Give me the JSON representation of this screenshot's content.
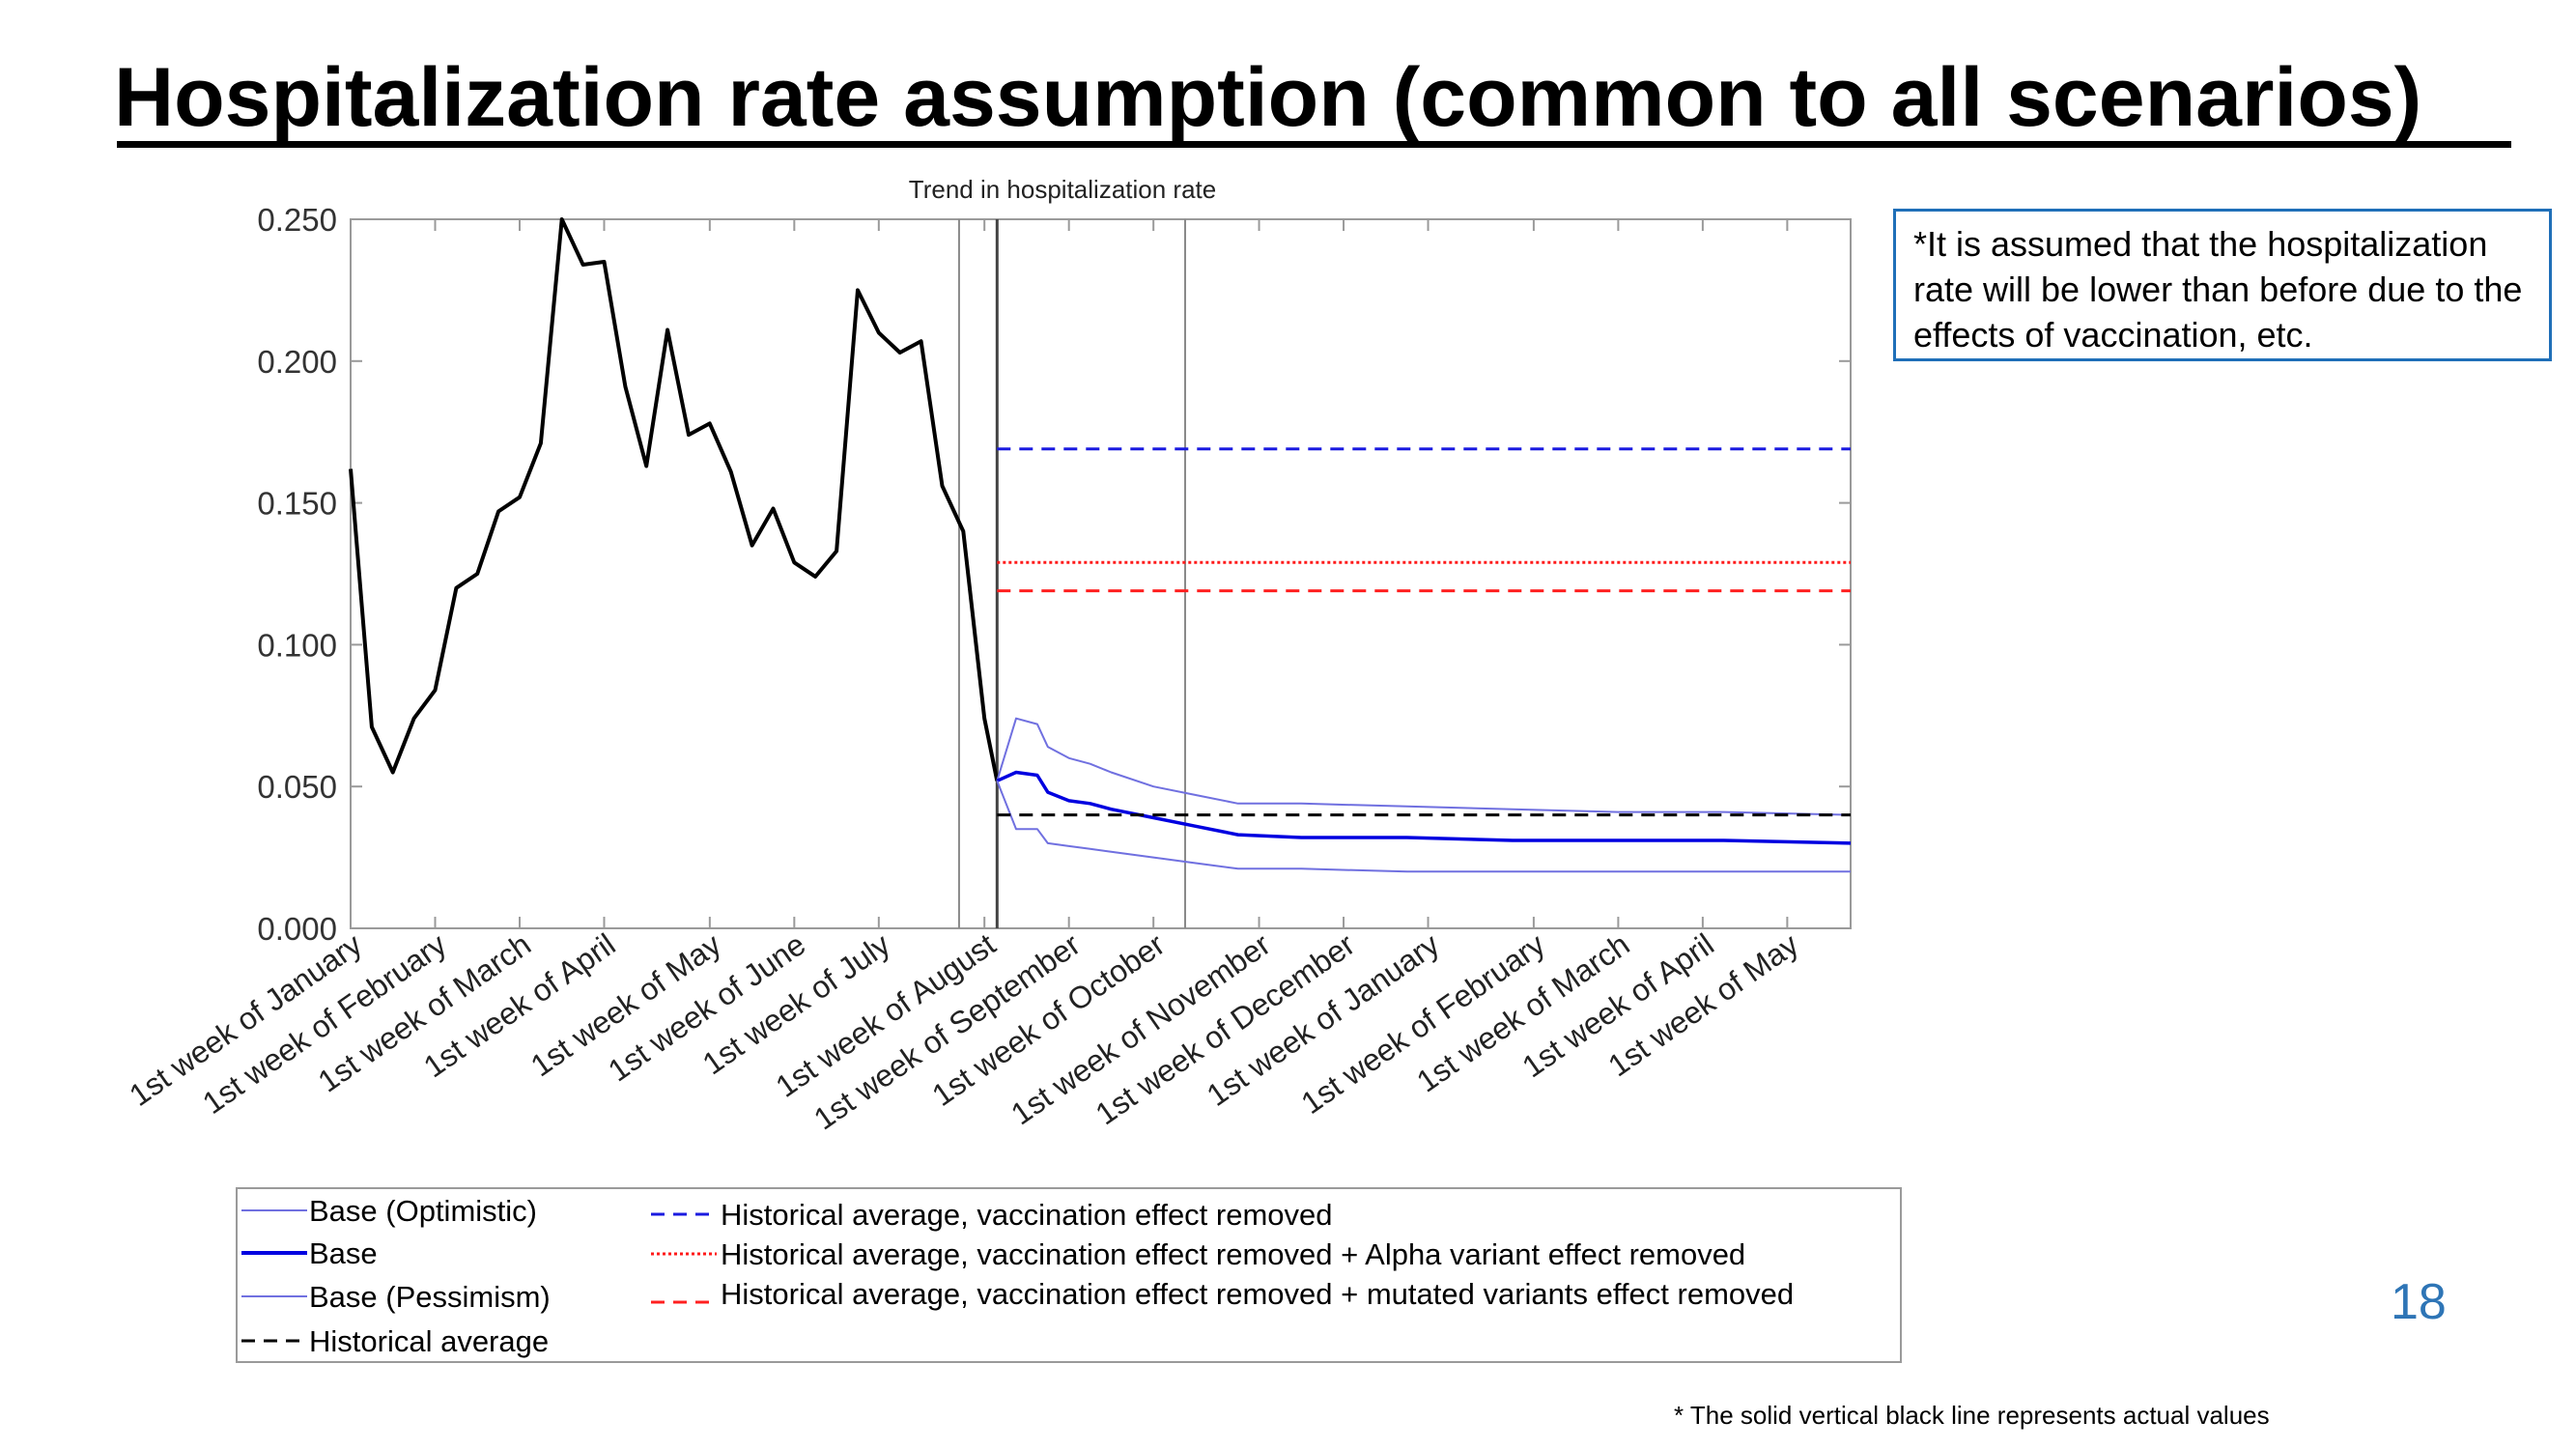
{
  "slide": {
    "title": "Hospitalization rate assumption (common to all scenarios)",
    "note": "*It is assumed that the hospitalization rate will be lower than before due to the effects of vaccination, etc.",
    "page_number": "18",
    "footnote_star": "*",
    "footnote": "The solid vertical black line represents actual values"
  },
  "colors": {
    "actual": "#000000",
    "base": "#0000e0",
    "base_band": "#7070e0",
    "vacc_removed": "#1a1ae0",
    "alpha_removed": "#ff1a1a",
    "mutated_removed": "#ff2020",
    "historical": "#000000",
    "note_border": "#1f6fb8",
    "page_number": "#2e75b6"
  },
  "chart_data": {
    "type": "line",
    "title": "Trend in hospitalization rate",
    "xlabel": "",
    "ylabel": "",
    "ylim": [
      0,
      0.25
    ],
    "yticks": [
      "0.000",
      "0.050",
      "0.100",
      "0.150",
      "0.200",
      "0.250"
    ],
    "ytick_values": [
      0,
      0.05,
      0.1,
      0.15,
      0.2,
      0.25
    ],
    "x_unit": "week index from 1st week of January",
    "xlim": [
      0,
      71
    ],
    "month_ticks": [
      {
        "label": "1st week of January",
        "x": 0
      },
      {
        "label": "1st week of February",
        "x": 4
      },
      {
        "label": "1st week of March",
        "x": 8
      },
      {
        "label": "1st week of April",
        "x": 12
      },
      {
        "label": "1st week of May",
        "x": 17
      },
      {
        "label": "1st week of June",
        "x": 21
      },
      {
        "label": "1st week of July",
        "x": 25
      },
      {
        "label": "1st week of August",
        "x": 30
      },
      {
        "label": "1st week of September",
        "x": 34
      },
      {
        "label": "1st week of October",
        "x": 38
      },
      {
        "label": "1st week of November",
        "x": 43
      },
      {
        "label": "1st week of December",
        "x": 47
      },
      {
        "label": "1st week of January",
        "x": 51
      },
      {
        "label": "1st week of February",
        "x": 56
      },
      {
        "label": "1st week of March",
        "x": 60
      },
      {
        "label": "1st week of April",
        "x": 64
      },
      {
        "label": "1st week of May",
        "x": 68
      }
    ],
    "vertical_lines": [
      {
        "x": 28.8,
        "kind": "thin"
      },
      {
        "x": 30.6,
        "kind": "actual"
      },
      {
        "x": 39.5,
        "kind": "thin"
      }
    ],
    "series": [
      {
        "key": "actual",
        "x": [
          0,
          1,
          2,
          3,
          4,
          5,
          6,
          7,
          8,
          9,
          10,
          11,
          12,
          13,
          14,
          15,
          16,
          17,
          18,
          19,
          20,
          21,
          22,
          23,
          24,
          25,
          26,
          27,
          28,
          29,
          30,
          30.6
        ],
        "values": [
          0.162,
          0.071,
          0.055,
          0.074,
          0.084,
          0.12,
          0.125,
          0.147,
          0.152,
          0.171,
          0.25,
          0.234,
          0.235,
          0.191,
          0.163,
          0.211,
          0.174,
          0.178,
          0.161,
          0.135,
          0.148,
          0.129,
          0.124,
          0.133,
          0.225,
          0.21,
          0.203,
          0.207,
          0.156,
          0.14,
          0.074,
          0.052
        ]
      },
      {
        "key": "optimistic",
        "name": "Base (Optimistic)",
        "x": [
          30.6,
          31.5,
          32.5,
          33,
          34,
          35,
          36,
          38,
          40,
          42,
          45,
          50,
          55,
          60,
          65,
          71
        ],
        "values": [
          0.052,
          0.074,
          0.072,
          0.064,
          0.06,
          0.058,
          0.055,
          0.05,
          0.047,
          0.044,
          0.044,
          0.043,
          0.042,
          0.041,
          0.041,
          0.04
        ]
      },
      {
        "key": "base",
        "name": "Base",
        "x": [
          30.6,
          31.5,
          32.5,
          33,
          34,
          35,
          36,
          38,
          40,
          42,
          45,
          50,
          55,
          60,
          65,
          71
        ],
        "values": [
          0.052,
          0.055,
          0.054,
          0.048,
          0.045,
          0.044,
          0.042,
          0.039,
          0.036,
          0.033,
          0.032,
          0.032,
          0.031,
          0.031,
          0.031,
          0.03
        ]
      },
      {
        "key": "pessimism",
        "name": "Base (Pessimism)",
        "x": [
          30.6,
          31.5,
          32.5,
          33,
          34,
          35,
          36,
          38,
          40,
          42,
          45,
          50,
          55,
          60,
          65,
          71
        ],
        "values": [
          0.052,
          0.035,
          0.035,
          0.03,
          0.029,
          0.028,
          0.027,
          0.025,
          0.023,
          0.021,
          0.021,
          0.02,
          0.02,
          0.02,
          0.02,
          0.02
        ]
      },
      {
        "key": "historical",
        "name": "Historical average",
        "x": [
          30.6,
          71
        ],
        "values": [
          0.04,
          0.04
        ]
      },
      {
        "key": "vacc_removed",
        "name": "Historical average, vaccination effect removed",
        "x": [
          30.6,
          71
        ],
        "values": [
          0.169,
          0.169
        ]
      },
      {
        "key": "alpha_removed",
        "name": "Historical average, vaccination effect removed + Alpha variant effect removed",
        "x": [
          30.6,
          71
        ],
        "values": [
          0.129,
          0.129
        ]
      },
      {
        "key": "mutated_removed",
        "name": "Historical average, vaccination effect removed + mutated variants effect removed",
        "x": [
          30.6,
          71
        ],
        "values": [
          0.119,
          0.119
        ]
      }
    ],
    "legend": {
      "left_column": [
        "Base (Optimistic)",
        "Base",
        "Base (Pessimism)",
        "Historical average"
      ],
      "right_column": [
        "Historical average, vaccination effect removed",
        "Historical average, vaccination effect removed + Alpha variant effect removed",
        "Historical average, vaccination effect removed + mutated variants effect removed"
      ]
    },
    "legend_placement": "bottom",
    "grid": false
  }
}
